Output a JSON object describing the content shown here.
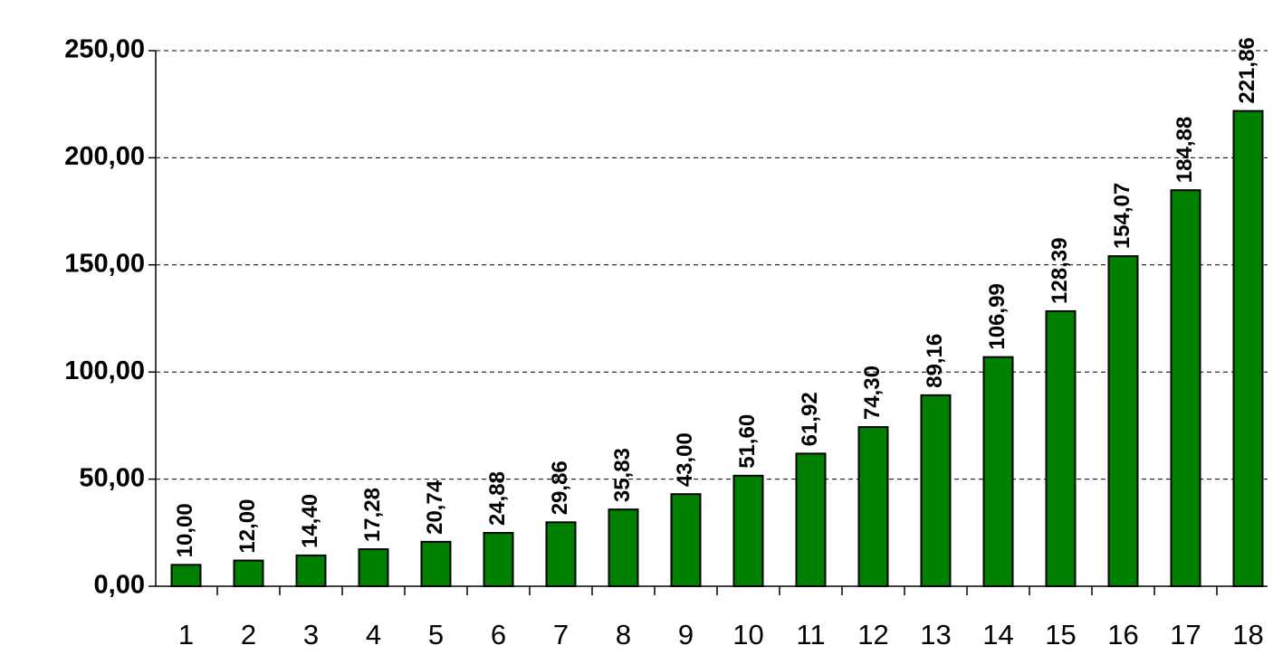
{
  "chart_data": {
    "type": "bar",
    "categories": [
      "1",
      "2",
      "3",
      "4",
      "5",
      "6",
      "7",
      "8",
      "9",
      "10",
      "11",
      "12",
      "13",
      "14",
      "15",
      "16",
      "17",
      "18"
    ],
    "values": [
      10.0,
      12.0,
      14.4,
      17.28,
      20.74,
      24.88,
      29.86,
      35.83,
      43.0,
      51.6,
      61.92,
      74.3,
      89.16,
      106.99,
      128.39,
      154.07,
      184.88,
      221.86
    ],
    "value_labels": [
      "10,00",
      "12,00",
      "14,40",
      "17,28",
      "20,74",
      "24,88",
      "29,86",
      "35,83",
      "43,00",
      "51,60",
      "61,92",
      "74,30",
      "89,16",
      "106,99",
      "128,39",
      "154,07",
      "184,88",
      "221,86"
    ],
    "color": "#008000",
    "ylim": [
      0,
      250
    ],
    "yticks": [
      {
        "value": 0,
        "label": "0,00"
      },
      {
        "value": 50,
        "label": "50,00"
      },
      {
        "value": 100,
        "label": "100,00"
      },
      {
        "value": 150,
        "label": "150,00"
      },
      {
        "value": 200,
        "label": "200,00"
      },
      {
        "value": 250,
        "label": "250,00"
      }
    ],
    "grid": true
  }
}
